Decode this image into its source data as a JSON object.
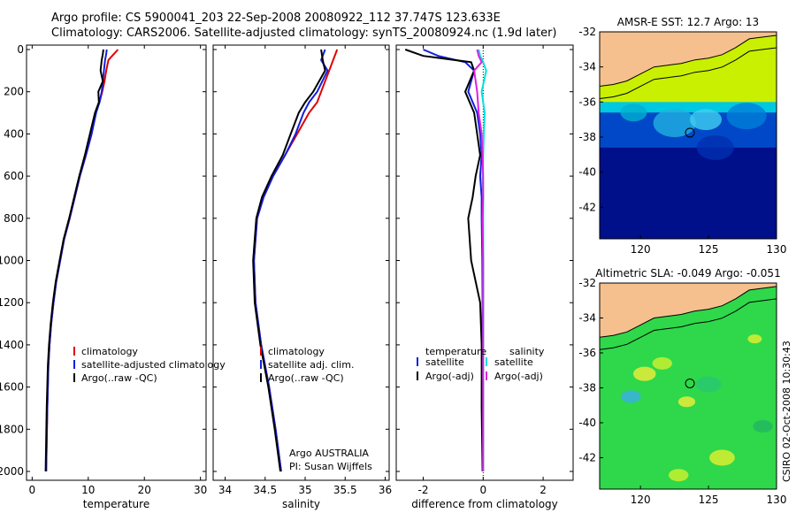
{
  "header": {
    "title_line1": "Argo profile: CS 5900041_203 22-Sep-2008 20080922_112 37.747S 123.633E",
    "title_line2": "Climatology: CARS2006. Satellite-adjusted climatology: synTS_20080924.nc (1.9d later)"
  },
  "credit": {
    "argo": "Argo AUSTRALIA",
    "pi": "PI: Susan Wijffels",
    "stamp": "CSIRO 02-Oct-2008 10:30:43"
  },
  "colors": {
    "climatology": "#e00000",
    "satellite": "#1020e0",
    "argo": "#000000",
    "salinity_sat": "#00e0e0",
    "salinity_argo": "#e020e0",
    "land": "#f5c08e",
    "ocean_deep": "#00108a"
  },
  "chart_data": [
    {
      "type": "line",
      "id": "temperature",
      "xlabel": "temperature",
      "ylabel": "",
      "xlim": [
        -1,
        31
      ],
      "ylim": [
        2000,
        0
      ],
      "xticks": [
        0,
        10,
        20,
        30
      ],
      "yticks": [
        0,
        200,
        400,
        600,
        800,
        1000,
        1200,
        1400,
        1600,
        1800,
        2000
      ],
      "legend": [
        "climatology",
        "satellite-adjusted climatology",
        "Argo(..raw -QC)"
      ],
      "series": [
        {
          "name": "climatology",
          "color": "#e00000",
          "x": [
            15.3,
            14.6,
            13.6,
            13.2,
            12.9,
            12.5,
            12.0,
            11.3,
            10.6,
            9.6,
            8.5,
            7.6,
            6.7,
            5.7,
            5.0,
            4.3,
            3.8,
            3.4,
            3.1,
            2.9,
            2.7,
            2.5
          ],
          "y": [
            0,
            20,
            50,
            100,
            150,
            200,
            250,
            300,
            400,
            500,
            600,
            700,
            800,
            900,
            1000,
            1100,
            1200,
            1300,
            1400,
            1500,
            1700,
            2000
          ]
        },
        {
          "name": "satellite-adjusted climatology",
          "color": "#1020e0",
          "x": [
            13.3,
            13.2,
            13.0,
            12.8,
            12.6,
            12.4,
            12.0,
            11.4,
            10.6,
            9.6,
            8.5,
            7.6,
            6.7,
            5.7,
            5.0,
            4.3,
            3.8,
            3.4,
            3.1,
            2.9,
            2.7,
            2.5
          ],
          "y": [
            0,
            20,
            50,
            100,
            150,
            200,
            250,
            300,
            400,
            500,
            600,
            700,
            800,
            900,
            1000,
            1100,
            1200,
            1300,
            1400,
            1500,
            1700,
            2000
          ]
        },
        {
          "name": "Argo(..raw -QC)",
          "color": "#000000",
          "x": [
            12.7,
            12.6,
            12.4,
            12.2,
            12.6,
            11.8,
            11.9,
            11.2,
            10.3,
            9.4,
            8.4,
            7.5,
            6.6,
            5.6,
            4.9,
            4.2,
            3.7,
            3.3,
            3.0,
            2.8,
            2.6,
            2.4
          ],
          "y": [
            0,
            20,
            50,
            100,
            150,
            200,
            250,
            300,
            400,
            500,
            600,
            700,
            800,
            900,
            1000,
            1100,
            1200,
            1300,
            1400,
            1500,
            1700,
            2000
          ]
        }
      ]
    },
    {
      "type": "line",
      "id": "salinity",
      "xlabel": "salinity",
      "ylabel": "",
      "xlim": [
        33.85,
        36.05
      ],
      "ylim": [
        2000,
        0
      ],
      "xticks": [
        34,
        34.5,
        35,
        35.5,
        36
      ],
      "xticklabels": [
        "34",
        "34.5",
        "35",
        "35.5",
        "36"
      ],
      "yticks": [
        0,
        200,
        400,
        600,
        800,
        1000,
        1200,
        1400,
        1600,
        1800,
        2000
      ],
      "legend": [
        "climatology",
        "satellite adj. clim.",
        "Argo(..raw -QC)"
      ],
      "series": [
        {
          "name": "climatology",
          "color": "#e00000",
          "x": [
            35.4,
            35.35,
            35.3,
            35.2,
            35.15,
            35.05,
            34.9,
            34.75,
            34.6,
            34.48,
            34.4,
            34.36,
            34.38,
            34.45,
            34.55,
            34.63,
            34.7
          ],
          "y": [
            0,
            50,
            100,
            200,
            250,
            300,
            400,
            500,
            600,
            700,
            800,
            1000,
            1200,
            1400,
            1600,
            1800,
            2000
          ]
        },
        {
          "name": "satellite adj. clim.",
          "color": "#1020e0",
          "x": [
            35.25,
            35.2,
            35.28,
            35.15,
            35.05,
            34.98,
            34.88,
            34.75,
            34.6,
            34.48,
            34.4,
            34.36,
            34.38,
            34.45,
            34.55,
            34.63,
            34.7
          ],
          "y": [
            0,
            50,
            100,
            200,
            250,
            300,
            400,
            500,
            600,
            700,
            800,
            1000,
            1200,
            1400,
            1600,
            1800,
            2000
          ]
        },
        {
          "name": "Argo(..raw -QC)",
          "color": "#000000",
          "x": [
            35.2,
            35.22,
            35.25,
            35.1,
            35.0,
            34.92,
            34.82,
            34.72,
            34.58,
            34.46,
            34.39,
            34.35,
            34.37,
            34.44,
            34.54,
            34.62,
            34.69
          ],
          "y": [
            0,
            50,
            100,
            200,
            250,
            300,
            400,
            500,
            600,
            700,
            800,
            1000,
            1200,
            1400,
            1600,
            1800,
            2000
          ]
        }
      ]
    },
    {
      "type": "line",
      "id": "difference",
      "xlabel": "difference from climatology",
      "ylabel": "",
      "xlim": [
        -2.9,
        3.0
      ],
      "ylim": [
        2000,
        0
      ],
      "xticks": [
        -2,
        0,
        2
      ],
      "yticks": [
        0,
        200,
        400,
        600,
        800,
        1000,
        1200,
        1400,
        1600,
        1800,
        2000
      ],
      "legend_header": [
        "temperature",
        "salinity"
      ],
      "legend": [
        "satellite",
        "Argo(-adj)",
        "satellite",
        "Argo(-adj)"
      ],
      "series": [
        {
          "name": "temperature satellite",
          "color": "#1020e0",
          "x": [
            -2.0,
            -1.5,
            -0.6,
            -0.3,
            -0.5,
            -0.2,
            -0.1,
            -0.05,
            -0.1,
            -0.05,
            -0.05,
            -0.03,
            -0.02,
            -0.02,
            -0.01,
            -0.01
          ],
          "y": [
            0,
            30,
            60,
            100,
            200,
            300,
            400,
            500,
            600,
            700,
            800,
            1000,
            1200,
            1400,
            1700,
            2000
          ]
        },
        {
          "name": "temperature Argo(-adj)",
          "color": "#000000",
          "x": [
            -2.6,
            -2.0,
            -0.4,
            -0.3,
            -0.6,
            -0.3,
            -0.2,
            -0.1,
            -0.25,
            -0.35,
            -0.5,
            -0.4,
            -0.1,
            -0.05,
            -0.05,
            -0.02
          ],
          "y": [
            0,
            30,
            60,
            100,
            200,
            300,
            400,
            500,
            600,
            700,
            800,
            1000,
            1200,
            1400,
            1700,
            2000
          ]
        },
        {
          "name": "salinity satellite",
          "color": "#00e0e0",
          "x": [
            -0.15,
            -0.1,
            0.0,
            0.1,
            -0.05,
            0.05,
            0.02,
            0.0,
            -0.02,
            0.0,
            0.0,
            0.0,
            0.0,
            0.0,
            0.0,
            0.0
          ],
          "y": [
            0,
            30,
            60,
            100,
            200,
            300,
            400,
            500,
            600,
            700,
            800,
            1000,
            1200,
            1400,
            1700,
            2000
          ]
        },
        {
          "name": "salinity Argo(-adj)",
          "color": "#e020e0",
          "x": [
            -0.2,
            -0.15,
            -0.05,
            -0.3,
            -0.2,
            -0.15,
            -0.05,
            -0.02,
            0.0,
            0.0,
            -0.02,
            0.0,
            0.0,
            0.0,
            0.0,
            0.0
          ],
          "y": [
            0,
            30,
            60,
            100,
            200,
            300,
            400,
            500,
            600,
            700,
            800,
            1000,
            1200,
            1400,
            1700,
            2000
          ]
        }
      ]
    },
    {
      "type": "heatmap",
      "id": "sst-map",
      "title": "AMSR-E SST: 12.7 Argo: 13",
      "xlim": [
        117,
        130
      ],
      "ylim": [
        -43.8,
        -32
      ],
      "xticks": [
        120,
        125,
        130
      ],
      "yticks": [
        -32,
        -34,
        -36,
        -38,
        -40,
        -42
      ],
      "marker": {
        "lon": 123.633,
        "lat": -37.747
      },
      "coast": [
        [
          117,
          -35.1
        ],
        [
          118,
          -35.0
        ],
        [
          119,
          -34.8
        ],
        [
          120,
          -34.4
        ],
        [
          121,
          -34.0
        ],
        [
          122,
          -33.9
        ],
        [
          123,
          -33.8
        ],
        [
          124,
          -33.6
        ],
        [
          125,
          -33.5
        ],
        [
          126,
          -33.3
        ],
        [
          127,
          -32.9
        ],
        [
          128,
          -32.4
        ],
        [
          129,
          -32.3
        ],
        [
          130,
          -32.2
        ]
      ],
      "bands": [
        {
          "lat": -36.0,
          "color": "#c8f000"
        },
        {
          "lat": -36.6,
          "color": "#00c8e0"
        },
        {
          "lat": -38.6,
          "color": "#0048c8"
        },
        {
          "lat": -43.8,
          "color": "#00108a"
        }
      ]
    },
    {
      "type": "heatmap",
      "id": "sla-map",
      "title": "Altimetric SLA: -0.049 Argo: -0.051",
      "xlim": [
        117,
        130
      ],
      "ylim": [
        -43.8,
        -32
      ],
      "xticks": [
        120,
        125,
        130
      ],
      "yticks": [
        -32,
        -34,
        -36,
        -38,
        -40,
        -42
      ],
      "marker": {
        "lon": 123.633,
        "lat": -37.747
      },
      "coast": [
        [
          117,
          -35.1
        ],
        [
          118,
          -35.0
        ],
        [
          119,
          -34.8
        ],
        [
          120,
          -34.4
        ],
        [
          121,
          -34.0
        ],
        [
          122,
          -33.9
        ],
        [
          123,
          -33.8
        ],
        [
          124,
          -33.6
        ],
        [
          125,
          -33.5
        ],
        [
          126,
          -33.3
        ],
        [
          127,
          -32.9
        ],
        [
          128,
          -32.4
        ],
        [
          129,
          -32.3
        ],
        [
          130,
          -32.2
        ]
      ],
      "bands": [
        {
          "lat": -43.8,
          "color": "#2ed84a"
        }
      ]
    }
  ]
}
